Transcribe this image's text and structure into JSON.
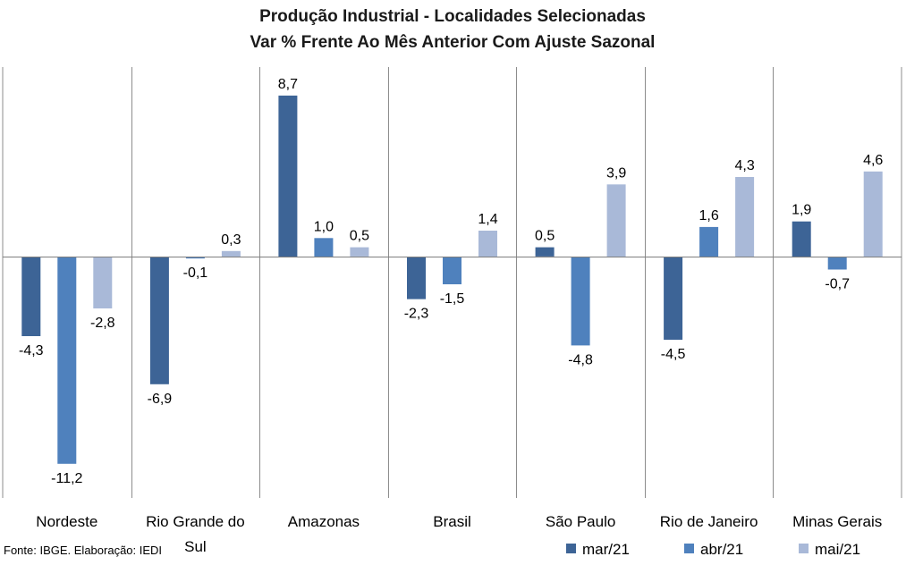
{
  "chart_data": {
    "type": "bar",
    "title": "Produção Industrial - Localidades Selecionadas",
    "subtitle": "Var % Frente Ao Mês Anterior Com Ajuste Sazonal",
    "categories": [
      "Nordeste",
      "Rio Grande do Sul",
      "Amazonas",
      "Brasil",
      "São Paulo",
      "Rio de Janeiro",
      "Minas Gerais"
    ],
    "series": [
      {
        "name": "mar/21",
        "color": "#3D6496",
        "values": [
          -4.3,
          -6.9,
          8.7,
          -2.3,
          0.5,
          -4.5,
          1.9
        ],
        "labels": [
          "-4,3",
          "-6,9",
          "8,7",
          "-2,3",
          "0,5",
          "-4,5",
          "1,9"
        ]
      },
      {
        "name": "abr/21",
        "color": "#4F81BD",
        "values": [
          -11.2,
          -0.1,
          1.0,
          -1.5,
          -4.8,
          1.6,
          -0.7
        ],
        "labels": [
          "-11,2",
          "-0,1",
          "1,0",
          "-1,5",
          "-4,8",
          "1,6",
          "-0,7"
        ]
      },
      {
        "name": "mai/21",
        "color": "#A9B9D8",
        "values": [
          -2.8,
          0.3,
          0.5,
          1.4,
          3.9,
          4.3,
          4.6
        ],
        "labels": [
          "-2,8",
          "0,3",
          "0,5",
          "1,4",
          "3,9",
          "4,3",
          "4,6"
        ]
      }
    ],
    "xlabel": "",
    "ylabel": "",
    "ylim": [
      -12.5,
      10.5
    ],
    "grid": false,
    "legend_position": "bottom-right"
  },
  "source": "Fonte: IBGE. Elaboração: IEDI"
}
